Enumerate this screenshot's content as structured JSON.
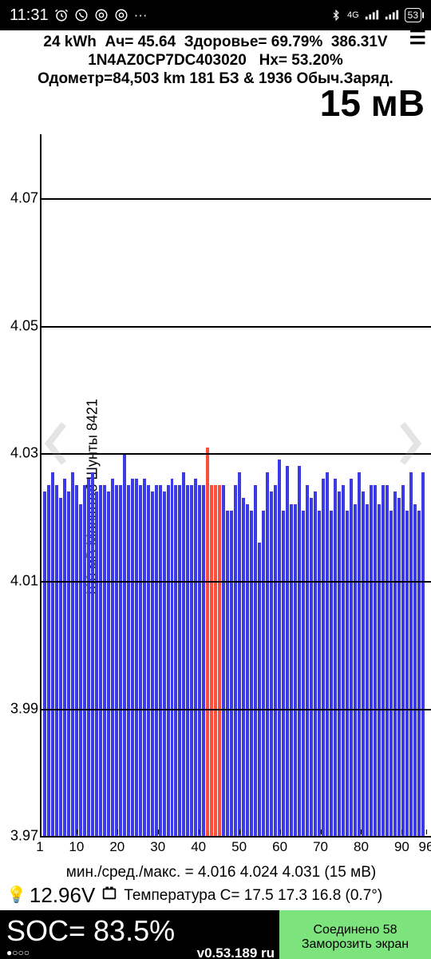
{
  "status": {
    "time": "11:31",
    "net": "4G",
    "battery": "53"
  },
  "info": {
    "line1_kwh": "24 kWh",
    "line1_ah": "Ач= 45.64",
    "line1_health": "Здоровье= 69.79%",
    "line1_volt": "386.31V",
    "line2_vin": "1N4AZ0CP7DC403020",
    "line2_hx": "Hx= 53.20%",
    "line3": "Одометр=84,503 km 181 БЗ & 1936 Обыч.Заряд."
  },
  "big_mv": "15 мВ",
  "chart": {
    "y_label": "100 мВ Масштаб   Шунты 8421",
    "y_min": 3.97,
    "y_max": 4.08,
    "grid_y": [
      3.97,
      3.99,
      4.01,
      4.03,
      4.05,
      4.07
    ],
    "y_ticks": [
      "3.97",
      "3.99",
      "4.01",
      "4.03",
      "4.05",
      "4.07"
    ],
    "x_ticks": [
      1,
      10,
      20,
      30,
      40,
      50,
      60,
      70,
      80,
      90,
      96
    ],
    "n": 96,
    "bar_color": "#3a3ae6",
    "highlight_color": "#ff4d3a",
    "highlight_range": [
      42,
      45
    ],
    "values": [
      4.024,
      4.025,
      4.027,
      4.025,
      4.023,
      4.026,
      4.024,
      4.027,
      4.025,
      4.022,
      4.025,
      4.026,
      4.027,
      4.024,
      4.025,
      4.025,
      4.024,
      4.026,
      4.025,
      4.025,
      4.03,
      4.025,
      4.026,
      4.026,
      4.025,
      4.026,
      4.025,
      4.024,
      4.025,
      4.025,
      4.024,
      4.025,
      4.026,
      4.025,
      4.025,
      4.027,
      4.025,
      4.025,
      4.026,
      4.025,
      4.025,
      4.031,
      4.025,
      4.025,
      4.025,
      4.025,
      4.021,
      4.021,
      4.025,
      4.027,
      4.023,
      4.022,
      4.021,
      4.025,
      4.016,
      4.021,
      4.027,
      4.024,
      4.025,
      4.029,
      4.021,
      4.028,
      4.022,
      4.022,
      4.028,
      4.021,
      4.025,
      4.023,
      4.024,
      4.021,
      4.026,
      4.027,
      4.021,
      4.026,
      4.024,
      4.025,
      4.021,
      4.026,
      4.022,
      4.027,
      4.024,
      4.022,
      4.025,
      4.025,
      4.022,
      4.025,
      4.025,
      4.021,
      4.024,
      4.023,
      4.025,
      4.021,
      4.027,
      4.022,
      4.021,
      4.027
    ]
  },
  "below": {
    "stats": "мин./сред./макс. = 4.016 4.024 4.031  (15 мВ)",
    "aux_v": "12.96V",
    "temp": "Температура C= 17.5  17.3  16.8  (0.7°)"
  },
  "footer": {
    "soc": "SOC= 83.5%",
    "dots": "●○○○",
    "version": "v0.53.189 ru",
    "conn": "Соединено 58",
    "freeze": "Заморозить экран"
  }
}
